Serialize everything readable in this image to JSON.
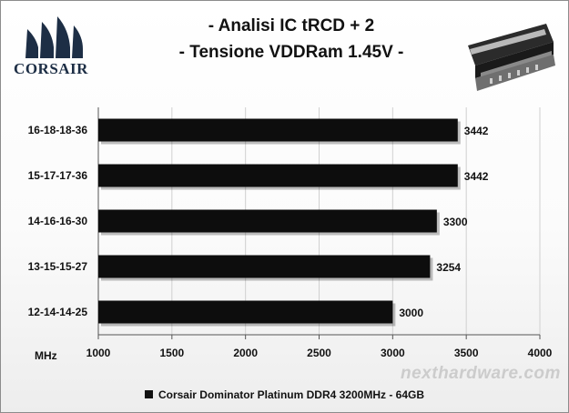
{
  "title_line1": "- Analisi IC  tRCD + 2",
  "title_line2": "- Tensione VDDRam 1.45V -",
  "logo_text": "CORSAIR",
  "watermark_text": "nexthardware.com",
  "x_unit": "MHz",
  "chart_data": {
    "type": "bar",
    "orientation": "horizontal",
    "categories": [
      "16-18-18-36",
      "15-17-17-36",
      "14-16-16-30",
      "13-15-15-27",
      "12-14-14-25"
    ],
    "series": [
      {
        "name": "Corsair Dominator Platinum DDR4 3200MHz - 64GB",
        "values": [
          3442,
          3442,
          3300,
          3254,
          3000
        ]
      }
    ],
    "xlim": [
      1000,
      4000
    ],
    "xticks": [
      1000,
      1500,
      2000,
      2500,
      3000,
      3500,
      4000
    ],
    "legend_position": "bottom",
    "grid": true,
    "colors": {
      "bar": "#0d0d0d",
      "grid": "#d0d0d0",
      "axis": "#555555"
    }
  }
}
